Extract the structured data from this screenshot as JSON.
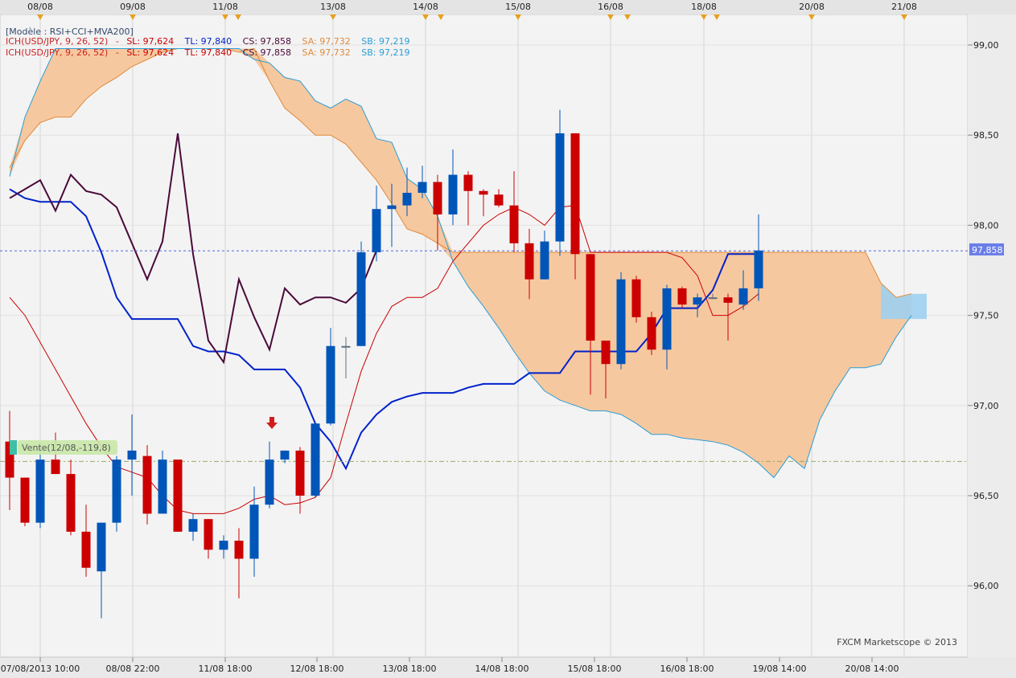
{
  "chart_data": {
    "type": "candlestick",
    "instrument": "USD/JPY",
    "header": {
      "model_line": "[Modèle : RSI+CCI+MVA200]",
      "ich_label": "ICH(USD/JPY, 9, 26, 52)",
      "ich_dash": "-",
      "sl": "SL: 97,624",
      "tl": "TL: 97,840",
      "cs": "CS: 97,858",
      "sa": "SA: 97,732",
      "sb": "SB: 97,219"
    },
    "top_dates": [
      "08/08",
      "09/08",
      "11/08",
      "13/08",
      "14/08",
      "15/08",
      "16/08",
      "18/08",
      "20/08",
      "21/08"
    ],
    "bottom_dates": [
      "07/08/2013 10:00",
      "08/08 22:00",
      "11/08 18:00",
      "12/08 18:00",
      "13/08 18:00",
      "14/08 18:00",
      "15/08 18:00",
      "16/08 18:00",
      "19/08 14:00",
      "20/08 14:00"
    ],
    "y_ticks": [
      "99,00",
      "98,50",
      "98,00",
      "97,50",
      "97,00",
      "96,50",
      "96,00"
    ],
    "ylim": [
      95.6,
      99.2
    ],
    "current_price": 97.858,
    "current_price_label": "97,858",
    "trade_level": 96.69,
    "trade_label": "Vente(12/08,-119,8)",
    "footer": "FXCM Marketscope © 2013",
    "colors": {
      "up": "#0055b8",
      "down": "#cc0000",
      "doji": "#5f7080",
      "cloud_bear": "#f5c59a",
      "cloud_bull": "#9fd0f0",
      "senkou_a": "#e08a3a",
      "senkou_b": "#2a9ed6",
      "tenkan": "#cc0000",
      "kijun": "#0022cc",
      "chikou": "#4a0a3a"
    },
    "candles": [
      {
        "o": 96.8,
        "h": 96.97,
        "l": 96.42,
        "c": 96.6
      },
      {
        "o": 96.6,
        "h": 96.6,
        "l": 96.33,
        "c": 96.35
      },
      {
        "o": 96.35,
        "h": 96.79,
        "l": 96.32,
        "c": 96.7
      },
      {
        "o": 96.7,
        "h": 96.85,
        "l": 96.62,
        "c": 96.62
      },
      {
        "o": 96.62,
        "h": 96.7,
        "l": 96.28,
        "c": 96.3
      },
      {
        "o": 96.3,
        "h": 96.45,
        "l": 96.05,
        "c": 96.1
      },
      {
        "o": 96.08,
        "h": 96.35,
        "l": 95.82,
        "c": 96.35
      },
      {
        "o": 96.35,
        "h": 96.72,
        "l": 96.3,
        "c": 96.7
      },
      {
        "o": 96.7,
        "h": 96.95,
        "l": 96.5,
        "c": 96.75
      },
      {
        "o": 96.72,
        "h": 96.78,
        "l": 96.34,
        "c": 96.4
      },
      {
        "o": 96.4,
        "h": 96.75,
        "l": 96.4,
        "c": 96.7
      },
      {
        "o": 96.7,
        "h": 96.7,
        "l": 96.3,
        "c": 96.3
      },
      {
        "o": 96.3,
        "h": 96.4,
        "l": 96.25,
        "c": 96.37
      },
      {
        "o": 96.37,
        "h": 96.37,
        "l": 96.15,
        "c": 96.2
      },
      {
        "o": 96.2,
        "h": 96.28,
        "l": 96.15,
        "c": 96.25
      },
      {
        "o": 96.25,
        "h": 96.32,
        "l": 95.93,
        "c": 96.15
      },
      {
        "o": 96.15,
        "h": 96.55,
        "l": 96.05,
        "c": 96.45
      },
      {
        "o": 96.45,
        "h": 96.8,
        "l": 96.43,
        "c": 96.7
      },
      {
        "o": 96.7,
        "h": 96.75,
        "l": 96.68,
        "c": 96.75
      },
      {
        "o": 96.75,
        "h": 96.77,
        "l": 96.4,
        "c": 96.5
      },
      {
        "o": 96.5,
        "h": 96.91,
        "l": 96.49,
        "c": 96.9
      },
      {
        "o": 96.9,
        "h": 97.43,
        "l": 96.89,
        "c": 97.33
      },
      {
        "o": 97.33,
        "h": 97.38,
        "l": 97.15,
        "c": 97.33
      },
      {
        "o": 97.33,
        "h": 97.91,
        "l": 97.33,
        "c": 97.85
      },
      {
        "o": 97.85,
        "h": 98.22,
        "l": 97.8,
        "c": 98.09
      },
      {
        "o": 98.09,
        "h": 98.23,
        "l": 97.88,
        "c": 98.11
      },
      {
        "o": 98.11,
        "h": 98.32,
        "l": 98.05,
        "c": 98.18
      },
      {
        "o": 98.18,
        "h": 98.33,
        "l": 98.15,
        "c": 98.24
      },
      {
        "o": 98.24,
        "h": 98.28,
        "l": 97.86,
        "c": 98.06
      },
      {
        "o": 98.06,
        "h": 98.42,
        "l": 98.0,
        "c": 98.28
      },
      {
        "o": 98.28,
        "h": 98.3,
        "l": 98.0,
        "c": 98.19
      },
      {
        "o": 98.19,
        "h": 98.2,
        "l": 98.05,
        "c": 98.17
      },
      {
        "o": 98.17,
        "h": 98.2,
        "l": 98.1,
        "c": 98.11
      },
      {
        "o": 98.11,
        "h": 98.3,
        "l": 97.85,
        "c": 97.9
      },
      {
        "o": 97.9,
        "h": 97.98,
        "l": 97.59,
        "c": 97.7
      },
      {
        "o": 97.7,
        "h": 97.97,
        "l": 97.7,
        "c": 97.91
      },
      {
        "o": 97.91,
        "h": 98.64,
        "l": 97.83,
        "c": 98.51
      },
      {
        "o": 98.51,
        "h": 98.51,
        "l": 97.7,
        "c": 97.84
      },
      {
        "o": 97.84,
        "h": 97.84,
        "l": 97.06,
        "c": 97.36
      },
      {
        "o": 97.36,
        "h": 97.35,
        "l": 97.04,
        "c": 97.23
      },
      {
        "o": 97.23,
        "h": 97.74,
        "l": 97.2,
        "c": 97.7
      },
      {
        "o": 97.7,
        "h": 97.72,
        "l": 97.46,
        "c": 97.49
      },
      {
        "o": 97.49,
        "h": 97.52,
        "l": 97.28,
        "c": 97.31
      },
      {
        "o": 97.31,
        "h": 97.67,
        "l": 97.2,
        "c": 97.65
      },
      {
        "o": 97.65,
        "h": 97.66,
        "l": 97.54,
        "c": 97.56
      },
      {
        "o": 97.56,
        "h": 97.62,
        "l": 97.49,
        "c": 97.6
      },
      {
        "o": 97.6,
        "h": 97.62,
        "l": 97.59,
        "c": 97.6
      },
      {
        "o": 97.6,
        "h": 97.62,
        "l": 97.36,
        "c": 97.57
      },
      {
        "o": 97.56,
        "h": 97.75,
        "l": 97.53,
        "c": 97.65
      },
      {
        "o": 97.65,
        "h": 98.06,
        "l": 97.58,
        "c": 97.86
      }
    ],
    "tenkan": [
      97.6,
      97.5,
      97.35,
      97.2,
      97.05,
      96.9,
      96.77,
      96.66,
      96.63,
      96.6,
      96.5,
      96.42,
      96.4,
      96.4,
      96.4,
      96.43,
      96.48,
      96.5,
      96.45,
      96.46,
      96.49,
      96.6,
      96.9,
      97.19,
      97.4,
      97.55,
      97.6,
      97.6,
      97.65,
      97.8,
      97.9,
      98.0,
      98.06,
      98.1,
      98.06,
      98.0,
      98.1,
      98.11,
      97.85,
      97.85,
      97.85,
      97.85,
      97.85,
      97.85,
      97.82,
      97.72,
      97.5,
      97.5,
      97.55,
      97.62
    ],
    "kijun": [
      98.2,
      98.15,
      98.13,
      98.13,
      98.13,
      98.05,
      97.85,
      97.6,
      97.48,
      97.48,
      97.48,
      97.48,
      97.33,
      97.3,
      97.3,
      97.28,
      97.2,
      97.2,
      97.2,
      97.1,
      96.9,
      96.8,
      96.65,
      96.85,
      96.95,
      97.02,
      97.05,
      97.07,
      97.07,
      97.07,
      97.1,
      97.12,
      97.12,
      97.12,
      97.18,
      97.18,
      97.18,
      97.3,
      97.3,
      97.3,
      97.3,
      97.3,
      97.4,
      97.54,
      97.54,
      97.54,
      97.64,
      97.84,
      97.84,
      97.84
    ],
    "chikou": [
      98.15,
      98.2,
      98.25,
      98.08,
      98.28,
      98.19,
      98.17,
      98.1,
      97.9,
      97.7,
      97.91,
      98.51,
      97.84,
      97.36,
      97.24,
      97.7,
      97.49,
      97.31,
      97.65,
      97.56,
      97.6,
      97.6,
      97.57,
      97.65,
      97.86
    ],
    "senkou_a": [
      98.32,
      98.47,
      98.57,
      98.6,
      98.6,
      98.7,
      98.77,
      98.82,
      98.88,
      98.92,
      98.96,
      98.98,
      98.98,
      98.98,
      98.98,
      98.96,
      98.98,
      98.8,
      98.65,
      98.58,
      98.5,
      98.5,
      98.45,
      98.35,
      98.25,
      98.12,
      97.98,
      97.95,
      97.9,
      97.85,
      97.85,
      97.85,
      97.85,
      97.85,
      97.85,
      97.85,
      97.85,
      97.85,
      97.85,
      97.85,
      97.85,
      97.85,
      97.85,
      97.85,
      97.85,
      97.85,
      97.85,
      97.85,
      97.85,
      97.85,
      97.85,
      97.85,
      97.85,
      97.85,
      97.85,
      97.85,
      97.85,
      97.68,
      97.6,
      97.62
    ],
    "senkou_b": [
      98.27,
      98.6,
      98.8,
      98.98,
      98.98,
      98.98,
      98.98,
      98.98,
      98.98,
      98.98,
      98.98,
      98.98,
      98.98,
      98.98,
      98.98,
      98.98,
      98.92,
      98.9,
      98.82,
      98.8,
      98.69,
      98.65,
      98.7,
      98.66,
      98.48,
      98.46,
      98.26,
      98.2,
      98.05,
      97.8,
      97.66,
      97.55,
      97.43,
      97.3,
      97.18,
      97.08,
      97.03,
      97.0,
      96.97,
      96.97,
      96.95,
      96.9,
      96.84,
      96.84,
      96.82,
      96.81,
      96.8,
      96.78,
      96.74,
      96.68,
      96.6,
      96.72,
      96.65,
      96.92,
      97.08,
      97.21,
      97.21,
      97.23,
      97.38,
      97.5
    ],
    "senkou_b_future": [
      97.48,
      97.48,
      97.48,
      97.48
    ]
  }
}
